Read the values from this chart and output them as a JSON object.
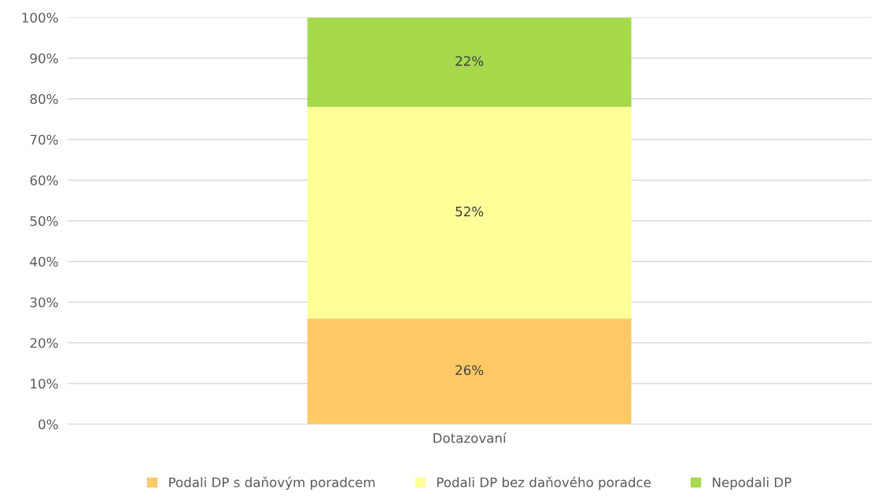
{
  "chart_data": {
    "type": "bar",
    "stacked": true,
    "categories": [
      "Dotazovaní"
    ],
    "series": [
      {
        "name": "Podali DP s daňovým poradcem",
        "color": "#ffc966",
        "values": [
          26
        ],
        "value_labels": [
          "26%"
        ]
      },
      {
        "name": "Podali DP bez daňového poradce",
        "color": "#ffff99",
        "values": [
          52
        ],
        "value_labels": [
          "52%"
        ]
      },
      {
        "name": "Nepodali DP",
        "color": "#a6d94b",
        "values": [
          22
        ],
        "value_labels": [
          "22%"
        ]
      }
    ],
    "ylim": [
      0,
      100
    ],
    "yticks": [
      {
        "value": 0,
        "label": "0%"
      },
      {
        "value": 10,
        "label": "10%"
      },
      {
        "value": 20,
        "label": "20%"
      },
      {
        "value": 30,
        "label": "30%"
      },
      {
        "value": 40,
        "label": "40%"
      },
      {
        "value": 50,
        "label": "50%"
      },
      {
        "value": 60,
        "label": "60%"
      },
      {
        "value": 70,
        "label": "70%"
      },
      {
        "value": 80,
        "label": "80%"
      },
      {
        "value": 90,
        "label": "90%"
      },
      {
        "value": 100,
        "label": "100%"
      }
    ],
    "grid": "y",
    "legend": "bottom"
  }
}
